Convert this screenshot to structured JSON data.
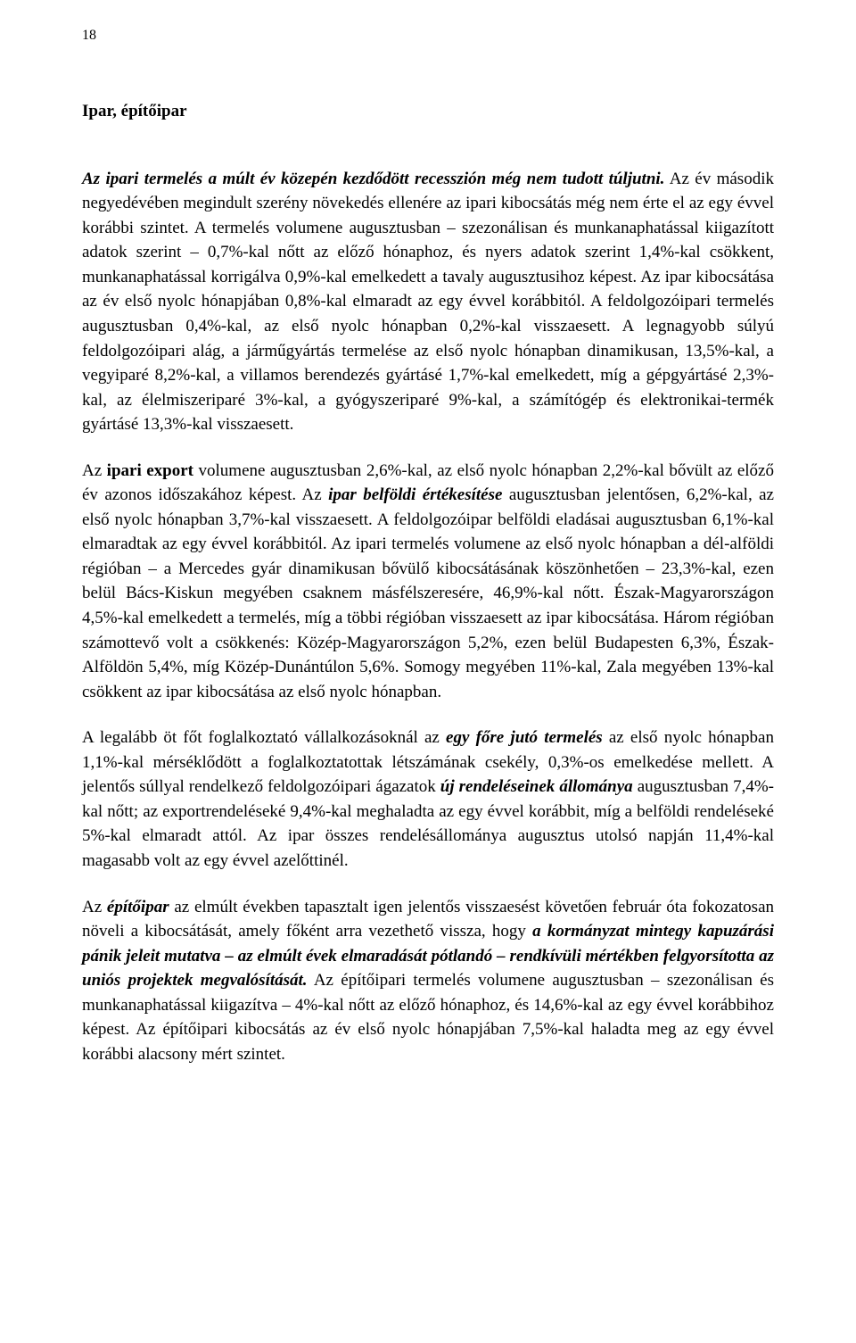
{
  "typography": {
    "font_family": "Times New Roman",
    "body_fontsize_pt": 14,
    "line_height": 1.45,
    "text_color": "#000000",
    "background_color": "#ffffff",
    "alignment": "justify"
  },
  "page_number": "18",
  "section_title": "Ipar, építőipar",
  "paragraphs": [
    {
      "runs": [
        {
          "text": "Az ipari termelés a múlt év közepén kezdődött recesszión még nem tudott túljutni.",
          "style": "bi"
        },
        {
          "text": " Az év második negyedévében megindult szerény növekedés ellenére az ipari kibocsátás még nem érte el az egy évvel korábbi szintet. A termelés volumene augusztusban – szezonálisan és munkanaphatással kiigazított adatok szerint – 0,7%-kal nőtt az előző hónaphoz, és nyers adatok szerint 1,4%-kal csökkent, munkanaphatással korrigálva 0,9%-kal emelkedett a tavaly augusztusihoz képest. Az ipar kibocsátása az év első nyolc hónapjában 0,8%-kal elmaradt az egy évvel korábbitól. A feldolgozóipari termelés augusztusban 0,4%-kal, az első nyolc hónapban 0,2%-kal visszaesett. A legnagyobb súlyú feldolgozóipari alág, a járműgyártás termelése az első nyolc hónapban dinamikusan, 13,5%-kal, a vegyiparé 8,2%-kal, a villamos berendezés gyártásé 1,7%-kal emelkedett, míg a gépgyártásé 2,3%-kal, az élelmiszeriparé 3%-kal, a gyógyszeriparé 9%-kal, a számítógép és elektronikai-termék gyártásé 13,3%-kal visszaesett.",
          "style": ""
        }
      ]
    },
    {
      "runs": [
        {
          "text": "Az ",
          "style": ""
        },
        {
          "text": "ipari export",
          "style": "b"
        },
        {
          "text": " volumene augusztusban 2,6%-kal, az első nyolc hónapban 2,2%-kal bővült az előző év azonos időszakához képest. Az ",
          "style": ""
        },
        {
          "text": "ipar belföldi értékesítése",
          "style": "bi"
        },
        {
          "text": " augusztusban jelentősen, 6,2%-kal, az első nyolc hónapban 3,7%-kal visszaesett. A feldolgozóipar belföldi eladásai augusztusban 6,1%-kal elmaradtak az egy évvel korábbitól. Az ipari termelés volumene az első nyolc hónapban a dél-alföldi régióban – a Mercedes gyár dinamikusan bővülő kibocsátásának köszönhetően – 23,3%-kal, ezen belül Bács-Kiskun megyében csaknem másfélszeresére, 46,9%-kal nőtt. Észak-Magyarországon 4,5%-kal emelkedett a termelés, míg a többi régióban visszaesett az ipar kibocsátása. Három régióban számottevő volt a csökkenés: Közép-Magyarországon 5,2%, ezen belül Budapesten 6,3%, Észak-Alföldön 5,4%, míg Közép-Dunántúlon 5,6%. Somogy megyében 11%-kal, Zala megyében 13%-kal csökkent az ipar kibocsátása az első nyolc hónapban.",
          "style": ""
        }
      ]
    },
    {
      "runs": [
        {
          "text": "A legalább öt főt foglalkoztató vállalkozásoknál az ",
          "style": ""
        },
        {
          "text": "egy főre jutó termelés",
          "style": "bi"
        },
        {
          "text": " az első nyolc hónapban 1,1%-kal mérséklődött a foglalkoztatottak létszámának csekély, 0,3%-os emelkedése mellett. A jelentős súllyal rendelkező feldolgozóipari ágazatok ",
          "style": ""
        },
        {
          "text": "új rendeléseinek állománya",
          "style": "bi"
        },
        {
          "text": " augusztusban 7,4%-kal nőtt; az exportrendeléseké 9,4%-kal meghaladta az egy évvel korábbit, míg a belföldi rendeléseké 5%-kal elmaradt attól. Az ipar összes rendelésállománya augusztus utolsó napján 11,4%-kal magasabb volt az egy évvel azelőttinél.",
          "style": ""
        }
      ]
    },
    {
      "runs": [
        {
          "text": "Az ",
          "style": ""
        },
        {
          "text": "építőipar",
          "style": "bi"
        },
        {
          "text": " az elmúlt években tapasztalt igen jelentős visszaesést követően február óta fokozatosan növeli a kibocsátását, amely főként arra vezethető vissza, hogy ",
          "style": ""
        },
        {
          "text": "a kormányzat mintegy kapuzárási pánik jeleit mutatva – az elmúlt évek elmaradását pótlandó – rendkívüli mértékben felgyorsította az uniós projektek megvalósítását.",
          "style": "bi"
        },
        {
          "text": " Az építőipari termelés volumene augusztusban – szezonálisan és munkanaphatással kiigazítva – 4%-kal nőtt az előző hónaphoz, és 14,6%-kal az egy évvel korábbihoz képest. Az építőipari kibocsátás az év első nyolc hónapjában 7,5%-kal haladta meg az egy évvel korábbi alacsony mért szintet.",
          "style": ""
        }
      ]
    }
  ]
}
